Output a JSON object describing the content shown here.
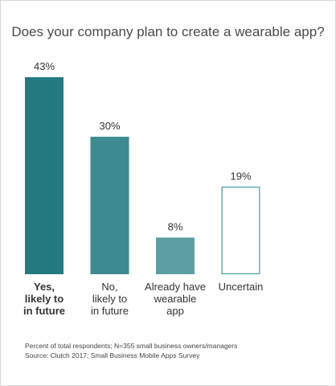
{
  "chart_data": {
    "type": "bar",
    "title": "Does your company plan to create a wearable app?",
    "categories": [
      [
        "Yes,",
        "likely to",
        "in future"
      ],
      [
        "No,",
        "likely to",
        "in future"
      ],
      [
        "Already have",
        "wearable",
        "app"
      ],
      [
        "Uncertain"
      ]
    ],
    "values": [
      43,
      30,
      8,
      19
    ],
    "value_labels": [
      "43%",
      "30%",
      "8%",
      "19%"
    ],
    "unit": "%",
    "ylim": [
      0,
      43
    ],
    "grid": false,
    "legend": "none",
    "bar_colors": [
      "#247a80",
      "#3d8b90",
      "#5c9ea2",
      "#ffffff"
    ],
    "bar_outline": "#4a9aa0",
    "bold_categories": [
      0
    ]
  },
  "footnotes": [
    "Percent of total respondents; N=355 small business owners/managers",
    "Source: Clutch 2017; Small Business Mobile Apps Survey"
  ]
}
